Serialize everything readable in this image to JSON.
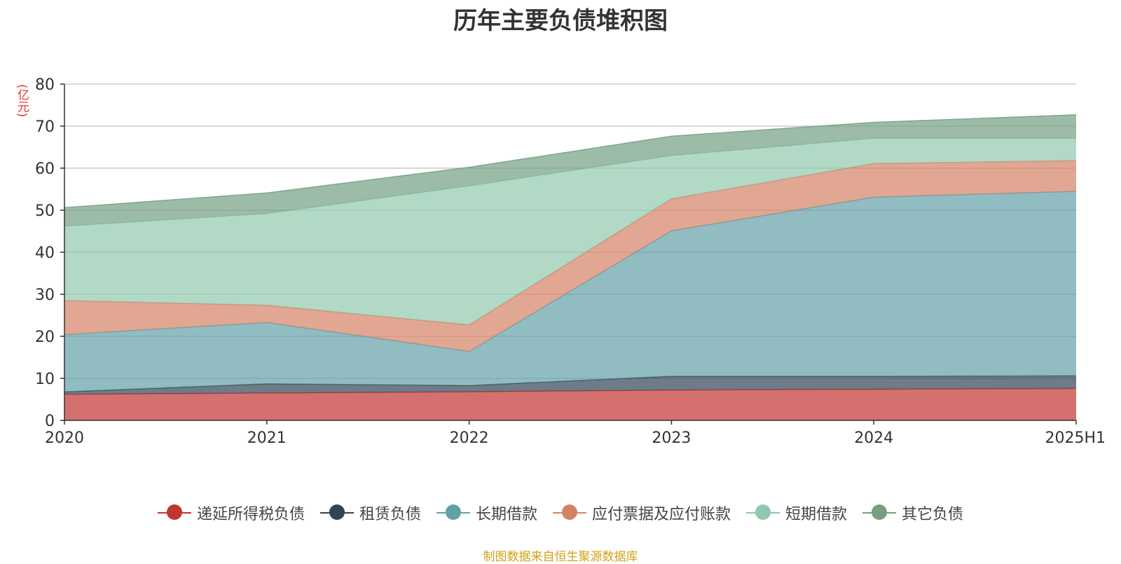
{
  "chart_data": {
    "type": "area",
    "stacked": true,
    "title": "历年主要负债堆积图",
    "unit_label": "(亿元)",
    "categories": [
      "2020",
      "2021",
      "2022",
      "2023",
      "2024",
      "2025H1"
    ],
    "ylim": [
      0,
      80
    ],
    "yticks": [
      0,
      10,
      20,
      30,
      40,
      50,
      60,
      70,
      80
    ],
    "grid": true,
    "legend_position": "bottom",
    "series": [
      {
        "name": "递延所得税负债",
        "color": "#c23531",
        "values": [
          6.2,
          6.5,
          6.8,
          7.2,
          7.4,
          7.6
        ]
      },
      {
        "name": "租赁负债",
        "color": "#2f4554",
        "values": [
          0.6,
          2.2,
          1.5,
          3.3,
          3.1,
          3.0
        ]
      },
      {
        "name": "长期借款",
        "color": "#61a0a8",
        "values": [
          13.6,
          14.6,
          8.1,
          34.6,
          42.6,
          43.9
        ]
      },
      {
        "name": "应付票据及应付账款",
        "color": "#d48265",
        "values": [
          8.1,
          4.1,
          6.3,
          7.6,
          8.0,
          7.3
        ]
      },
      {
        "name": "短期借款",
        "color": "#91c7ae",
        "values": [
          17.7,
          21.8,
          33.1,
          10.3,
          6.0,
          5.3
        ]
      },
      {
        "name": "其它负债",
        "color": "#749f83",
        "values": [
          4.4,
          4.9,
          4.4,
          4.6,
          3.8,
          5.6
        ]
      }
    ]
  },
  "source_note": "制图数据来自恒生聚源数据库"
}
